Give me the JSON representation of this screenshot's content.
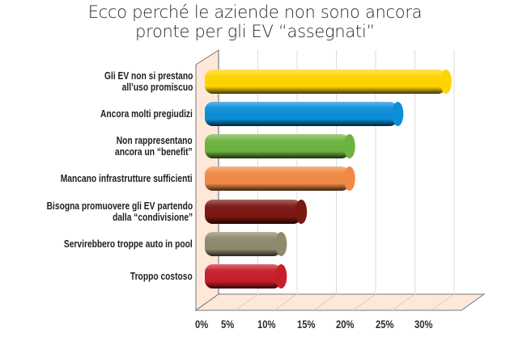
{
  "title": {
    "line1": "Ecco perché le aziende non sono ancora",
    "line2": "pronte per gli EV “assegnati”"
  },
  "chart_data": {
    "type": "bar",
    "orientation": "horizontal",
    "style": "3d-cylinder",
    "title": "Ecco perché le aziende non sono ancora pronte per gli EV “assegnati”",
    "xlabel": "",
    "ylabel": "",
    "xlim": [
      0,
      35
    ],
    "grid": true,
    "legend": false,
    "categories": [
      "Gli EV non si prestano all’uso promiscuo",
      "Ancora molti pregiudizi",
      "Non rappresentano ancora un “benefit”",
      "Mancano infrastrutture sufficienti",
      "Bisogna promuovere gli EV partendo dalla “condivisione”",
      "Servirebbero troppe auto in pool",
      "Troppo costoso"
    ],
    "values": [
      30,
      24,
      18,
      18,
      12,
      9.5,
      9.5
    ],
    "colors": [
      "#ffd400",
      "#0a8fd8",
      "#6db33f",
      "#f08a45",
      "#7a1712",
      "#8e8a6c",
      "#c81e2a"
    ],
    "x_ticks": [
      "0%",
      "5%",
      "10%",
      "15%",
      "20%",
      "25%",
      "30%"
    ]
  },
  "labels": [
    {
      "l1": "Gli EV non si prestano",
      "l2": "all’uso promiscuo"
    },
    {
      "l1": "Ancora molti pregiudizi",
      "l2": ""
    },
    {
      "l1": "Non rappresentano",
      "l2": "ancora un “benefit”"
    },
    {
      "l1": "Mancano infrastrutture sufficienti",
      "l2": ""
    },
    {
      "l1": "Bisogna promuovere gli EV partendo",
      "l2": "dalla “condivisione”"
    },
    {
      "l1": "Servirebbero troppe auto in pool",
      "l2": ""
    },
    {
      "l1": "Troppo costoso",
      "l2": ""
    }
  ],
  "ticks": [
    "0%",
    "5%",
    "10%",
    "15%",
    "20%",
    "25%",
    "30%"
  ]
}
